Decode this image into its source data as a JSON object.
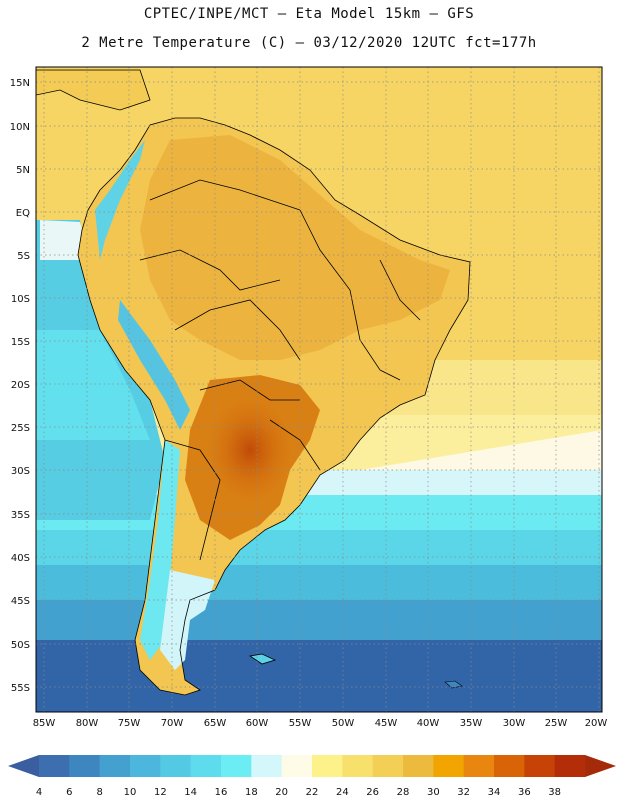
{
  "header": {
    "title_line1": "CPTEC/INPE/MCT –  Eta Model 15km – GFS",
    "title_line2": "2 Metre Temperature (C) – 03/12/2020 12UTC fct=177h"
  },
  "map": {
    "lat_labels": [
      "15N",
      "10N",
      "5N",
      "EQ",
      "5S",
      "10S",
      "15S",
      "20S",
      "25S",
      "30S",
      "35S",
      "40S",
      "45S",
      "50S",
      "55S"
    ],
    "lon_labels": [
      "85W",
      "80W",
      "75W",
      "70W",
      "65W",
      "60W",
      "55W",
      "50W",
      "45W",
      "40W",
      "35W",
      "30W",
      "25W",
      "20W"
    ]
  },
  "colorbar": {
    "labels": [
      "4",
      "6",
      "8",
      "10",
      "12",
      "14",
      "16",
      "18",
      "20",
      "22",
      "24",
      "26",
      "28",
      "30",
      "32",
      "34",
      "36",
      "38"
    ],
    "colors": [
      "#3d6fb0",
      "#3e86c0",
      "#44a1cf",
      "#4cb6dc",
      "#54c9e4",
      "#5edbec",
      "#6cecf3",
      "#d4f7fc",
      "#fefbe6",
      "#fdf18a",
      "#f8e06c",
      "#f3cf56",
      "#ecbb3e",
      "#f2a400",
      "#e9860f",
      "#d96408",
      "#c74207",
      "#b32d08"
    ],
    "under_color": "#3a5ea0",
    "over_color": "#a52a0a"
  }
}
